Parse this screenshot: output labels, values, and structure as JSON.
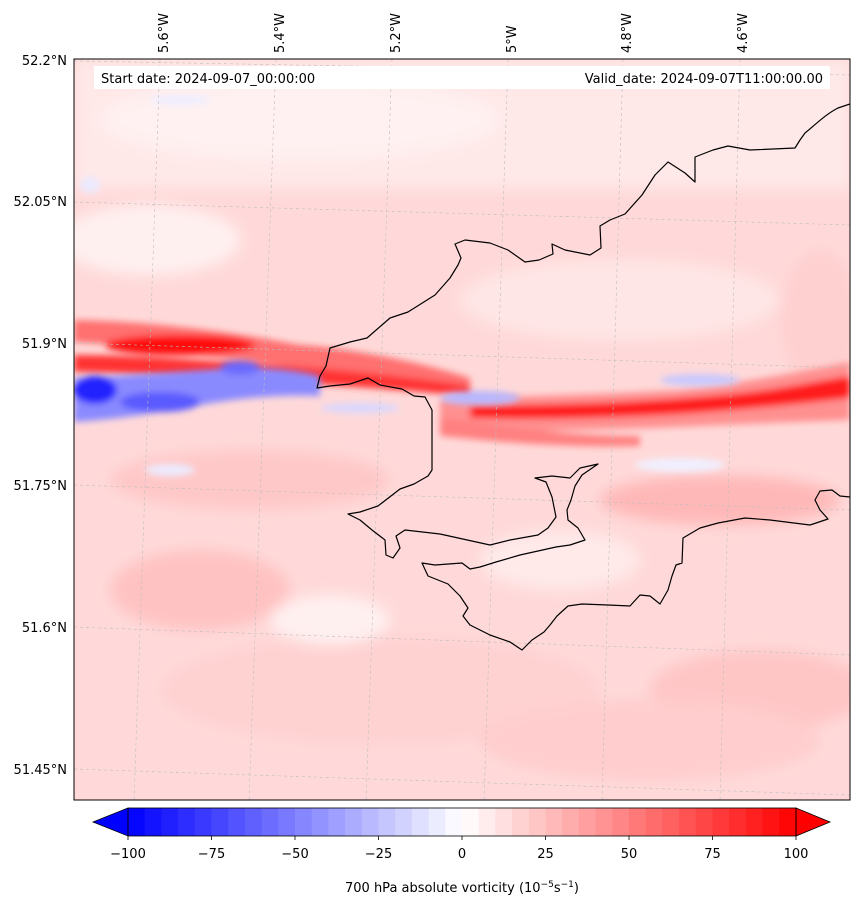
{
  "map": {
    "start_date_text": "Start date: 2024-09-07_00:00:00",
    "valid_date_text": "Valid_date: 2024-09-07T11:00:00.00",
    "lon_labels": [
      "5.6°W",
      "5.4°W",
      "5.2°W",
      "5°W",
      "4.8°W",
      "4.6°W"
    ],
    "lat_labels": [
      "52.2°N",
      "52.05°N",
      "51.9°N",
      "51.75°N",
      "51.6°N",
      "51.45°N"
    ],
    "field": "700 hPa absolute vorticity",
    "gridlines": true
  },
  "colorbar": {
    "label_main": "700 hPa absolute vorticity (10",
    "label_exp1": "−5",
    "label_mid": "s",
    "label_exp2": "−1",
    "label_end": ")",
    "ticks": [
      "−100",
      "−75",
      "−50",
      "−25",
      "0",
      "25",
      "50",
      "75",
      "100"
    ],
    "range": [
      -100,
      100
    ],
    "extend": "both",
    "cmap": "bwr",
    "color_min": "#0000ff",
    "color_mid": "#ffffff",
    "color_max": "#ff0000"
  }
}
